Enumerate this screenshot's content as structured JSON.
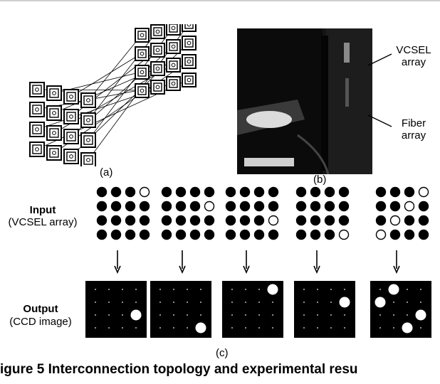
{
  "panel_labels": {
    "a": "(a)",
    "b": "(b)",
    "c": "(c)"
  },
  "photo_labels": {
    "vcsel_line1": "VCSEL",
    "vcsel_line2": "array",
    "fiber_line1": "Fiber",
    "fiber_line2": "array"
  },
  "row_labels": {
    "input_title": "Input",
    "input_subtitle": "(VCSEL array)",
    "output_title": "Output",
    "output_subtitle": "(CCD image)"
  },
  "caption": "igure 5 Interconnection topology and experimental resu",
  "input_patterns": [
    [
      [
        1,
        1,
        1,
        0
      ],
      [
        1,
        1,
        1,
        1
      ],
      [
        1,
        1,
        1,
        1
      ],
      [
        1,
        1,
        1,
        1
      ]
    ],
    [
      [
        1,
        1,
        1,
        1
      ],
      [
        1,
        1,
        1,
        0
      ],
      [
        1,
        1,
        1,
        1
      ],
      [
        1,
        1,
        1,
        1
      ]
    ],
    [
      [
        1,
        1,
        1,
        1
      ],
      [
        1,
        1,
        1,
        1
      ],
      [
        1,
        1,
        1,
        0
      ],
      [
        1,
        1,
        1,
        1
      ]
    ],
    [
      [
        1,
        1,
        1,
        1
      ],
      [
        1,
        1,
        1,
        1
      ],
      [
        1,
        1,
        1,
        1
      ],
      [
        1,
        1,
        1,
        0
      ]
    ],
    [
      [
        1,
        1,
        1,
        0
      ],
      [
        1,
        1,
        0,
        1
      ],
      [
        1,
        0,
        1,
        1
      ],
      [
        0,
        1,
        1,
        1
      ]
    ]
  ],
  "output_spots": [
    [
      [
        2,
        3
      ]
    ],
    [
      [
        3,
        3
      ]
    ],
    [
      [
        0,
        3
      ]
    ],
    [
      [
        1,
        3
      ]
    ],
    [
      [
        0,
        1
      ],
      [
        1,
        0
      ],
      [
        2,
        3
      ],
      [
        3,
        2
      ]
    ]
  ],
  "colors": {
    "dot": "#000000",
    "ink": "#000000",
    "ccd_background": "#000000",
    "spot": "#ffffff"
  }
}
